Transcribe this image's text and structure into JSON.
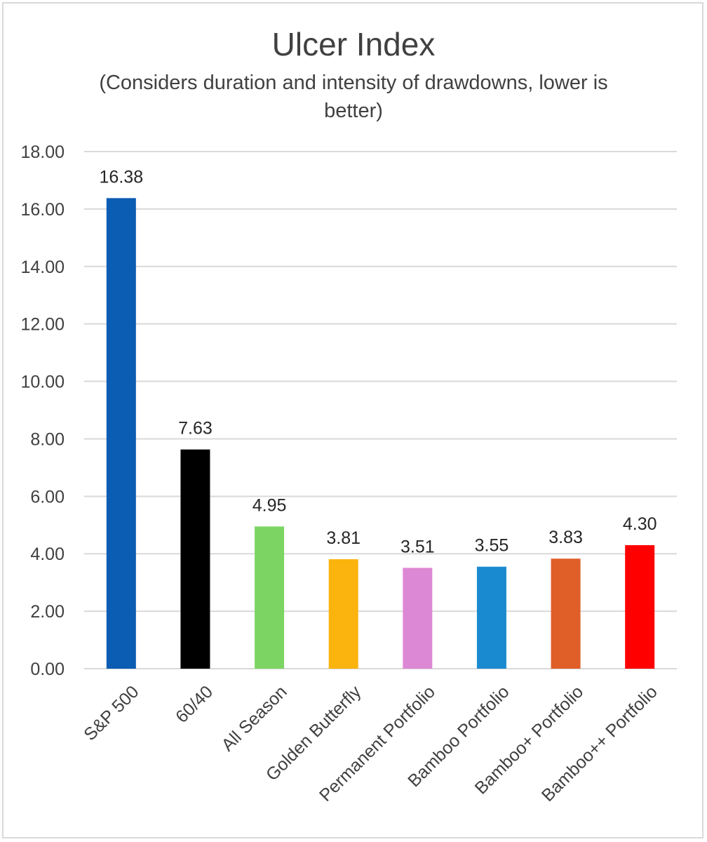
{
  "chart_data": {
    "type": "bar",
    "title": "Ulcer Index",
    "subtitle": "(Considers duration and intensity of drawdowns, lower is better)",
    "categories": [
      "S&P 500",
      "60/40",
      "All Season",
      "Golden Butterfly",
      "Permanent Portfolio",
      "Bamboo Portfolio",
      "Bamboo+ Portfolio",
      "Bamboo++ Portfolio"
    ],
    "values": [
      16.38,
      7.63,
      4.95,
      3.81,
      3.51,
      3.55,
      3.83,
      4.3
    ],
    "value_labels": [
      "16.38",
      "7.63",
      "4.95",
      "3.81",
      "3.51",
      "3.55",
      "3.83",
      "4.30"
    ],
    "colors": [
      "#0b5cb3",
      "#000000",
      "#7cd563",
      "#fbb30e",
      "#dd88d4",
      "#1a8ad0",
      "#e05e27",
      "#fe0000"
    ],
    "yticks": [
      "0.00",
      "2.00",
      "4.00",
      "6.00",
      "8.00",
      "10.00",
      "12.00",
      "14.00",
      "16.00",
      "18.00"
    ],
    "ylim": [
      0,
      18
    ],
    "grid": true,
    "xlabel": "",
    "ylabel": ""
  }
}
